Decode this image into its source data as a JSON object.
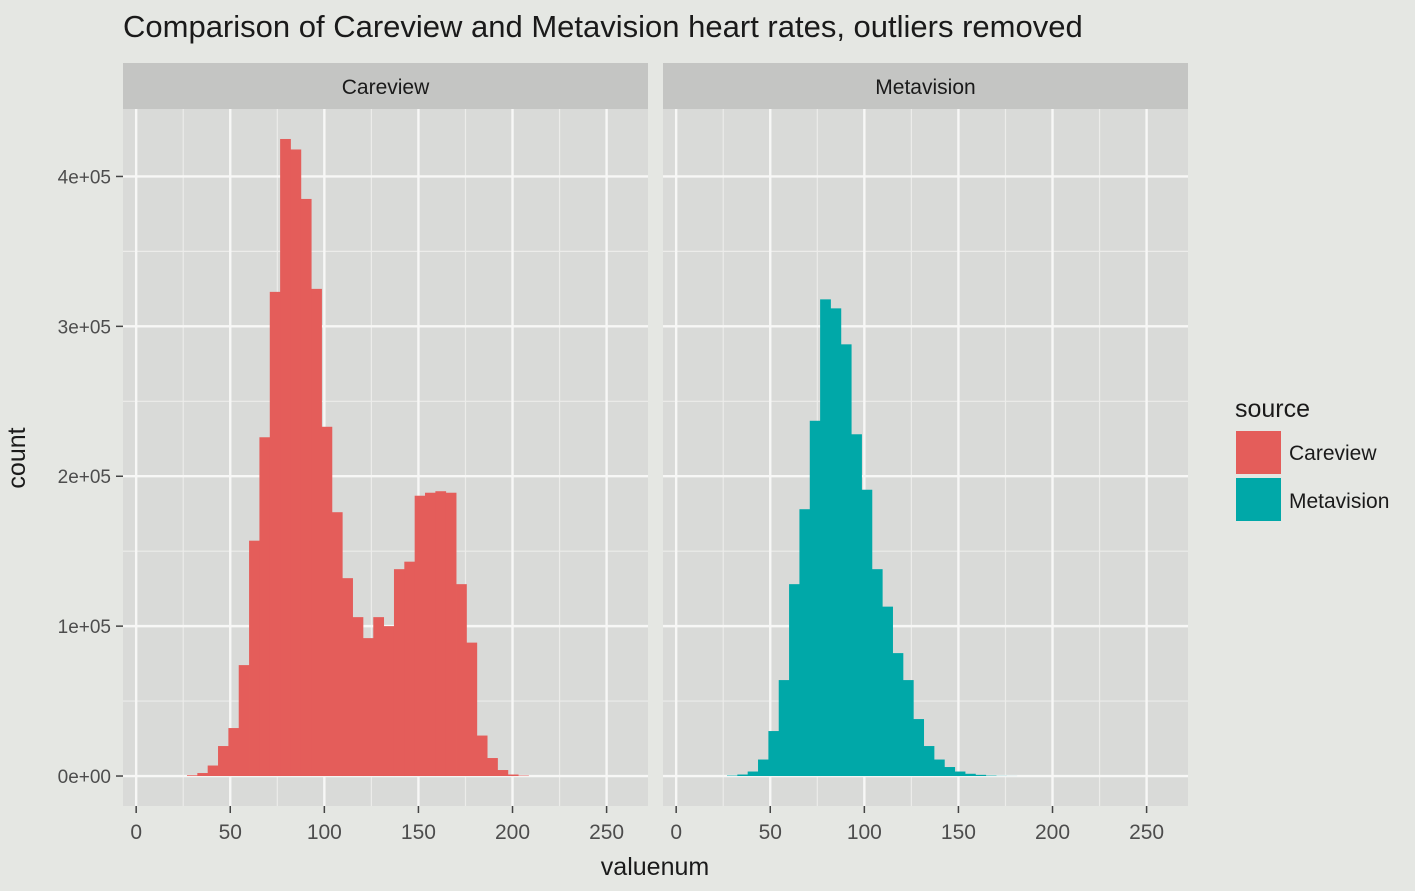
{
  "chart_data": {
    "type": "bar",
    "subtype": "faceted-histogram",
    "title": "Comparison of Careview and Metavision heart rates, outliers removed",
    "xlabel": "valuenum",
    "ylabel": "count",
    "xlim": [
      -7,
      272
    ],
    "ylim": [
      -20000,
      445000
    ],
    "x_ticks": [
      0,
      50,
      100,
      150,
      200,
      250
    ],
    "x_tick_labels": [
      "0",
      "50",
      "100",
      "150",
      "200",
      "250"
    ],
    "y_ticks": [
      0,
      100000,
      200000,
      300000,
      400000
    ],
    "y_tick_labels": [
      "0e+00",
      "1e+05",
      "2e+05",
      "3e+05",
      "4e+05"
    ],
    "bin_width": 5.5,
    "grid": true,
    "legend": {
      "title": "source",
      "position": "right",
      "entries": [
        {
          "label": "Careview",
          "color": "#e45d5a"
        },
        {
          "label": "Metavision",
          "color": "#00a8a8"
        }
      ]
    },
    "series": [
      {
        "name": "Careview",
        "facet": "Careview",
        "color": "#e45d5a",
        "bin_starts": [
          27,
          32.5,
          38,
          43.5,
          49,
          54.5,
          60,
          65.5,
          71,
          76.5,
          82,
          87.5,
          93,
          98.5,
          104,
          109.5,
          115,
          120.5,
          126,
          131.5,
          137,
          142.5,
          148,
          153.5,
          159,
          164.5,
          170,
          175.5,
          181,
          186.5,
          192,
          197.5,
          203
        ],
        "values": [
          500,
          2000,
          7000,
          20000,
          32000,
          74000,
          157000,
          226000,
          323000,
          425000,
          418000,
          385000,
          325000,
          233000,
          176000,
          132000,
          106000,
          92000,
          106000,
          100000,
          138000,
          143000,
          187000,
          189000,
          190000,
          189000,
          128000,
          89000,
          27000,
          12000,
          4000,
          1000,
          300
        ]
      },
      {
        "name": "Metavision",
        "facet": "Metavision",
        "color": "#00a8a8",
        "bin_starts": [
          27,
          32.5,
          38,
          43.5,
          49,
          54.5,
          60,
          65.5,
          71,
          76.5,
          82,
          87.5,
          93,
          98.5,
          104,
          109.5,
          115,
          120.5,
          126,
          131.5,
          137,
          142.5,
          148,
          153.5,
          159,
          164.5,
          170,
          175.5
        ],
        "values": [
          300,
          1000,
          3000,
          11000,
          30000,
          64000,
          128000,
          178000,
          237000,
          318000,
          312000,
          288000,
          228000,
          191000,
          138000,
          113000,
          82000,
          64000,
          38000,
          20000,
          11000,
          6000,
          3000,
          1500,
          800,
          300,
          100,
          50
        ]
      }
    ]
  }
}
